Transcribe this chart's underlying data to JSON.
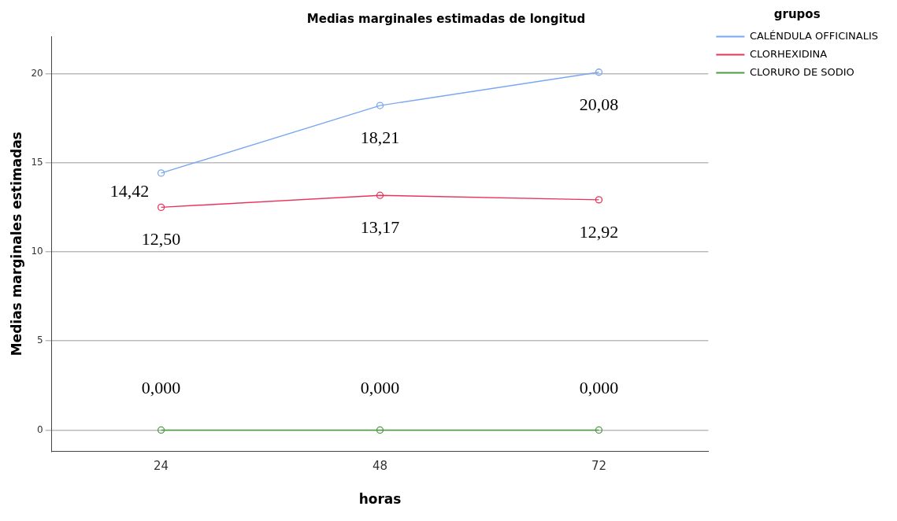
{
  "chart_data": {
    "type": "line",
    "title": "Medias marginales estimadas de longitud",
    "xlabel": "horas",
    "ylabel": "Medias marginales estimadas",
    "legend_title": "grupos",
    "categories": [
      "24",
      "48",
      "72"
    ],
    "series": [
      {
        "name": "CALÉNDULA OFFICINALIS",
        "color": "#79a7f2",
        "values": [
          14.42,
          18.21,
          20.08
        ],
        "value_labels": [
          "14,42",
          "18,21",
          "20,08"
        ]
      },
      {
        "name": "CLORHEXIDINA",
        "color": "#e8345a",
        "values": [
          12.5,
          13.17,
          12.92
        ],
        "value_labels": [
          "12,50",
          "13,17",
          "12,92"
        ]
      },
      {
        "name": "CLORURO DE SODIO",
        "color": "#4f9a44",
        "values": [
          0,
          0,
          0
        ],
        "value_labels": [
          "0,000",
          "0,000",
          "0,000"
        ]
      }
    ],
    "ylim": [
      -1.2,
      22.1
    ],
    "yticks": [
      0,
      5,
      10,
      15,
      20
    ],
    "grid": "y",
    "legend": "right",
    "marker": "circle"
  }
}
